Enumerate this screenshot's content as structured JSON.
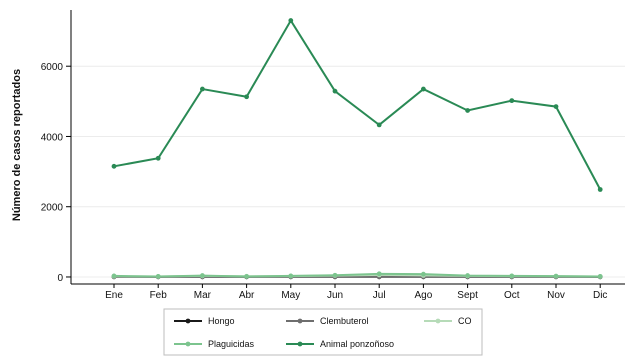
{
  "chart_data": {
    "type": "line",
    "ylabel": "Número de casos reportados",
    "categories": [
      "Ene",
      "Feb",
      "Mar",
      "Abr",
      "May",
      "Jun",
      "Jul",
      "Ago",
      "Sept",
      "Oct",
      "Nov",
      "Dic"
    ],
    "y_ticks": [
      0,
      2000,
      4000,
      6000
    ],
    "ylim": [
      -200,
      7600
    ],
    "grid": true,
    "legend_position": "bottom",
    "series": [
      {
        "name": "Hongo",
        "color": "#1a1a1a",
        "values": [
          5,
          5,
          5,
          5,
          5,
          5,
          5,
          5,
          5,
          5,
          5,
          5
        ]
      },
      {
        "name": "Clembuterol",
        "color": "#6e6e6e",
        "values": [
          5,
          5,
          5,
          5,
          5,
          5,
          5,
          5,
          5,
          5,
          5,
          5
        ]
      },
      {
        "name": "CO",
        "color": "#b6dbb8",
        "values": [
          20,
          15,
          30,
          20,
          25,
          40,
          60,
          45,
          30,
          25,
          20,
          15
        ]
      },
      {
        "name": "Plaguicidas",
        "color": "#7cc48e",
        "values": [
          30,
          15,
          40,
          15,
          30,
          50,
          90,
          80,
          40,
          30,
          25,
          15
        ]
      },
      {
        "name": "Animal ponzoñoso",
        "color": "#2a8a55",
        "values": [
          3150,
          3380,
          5350,
          5130,
          7300,
          5290,
          4330,
          5350,
          4740,
          5020,
          4850,
          2490
        ]
      }
    ]
  }
}
